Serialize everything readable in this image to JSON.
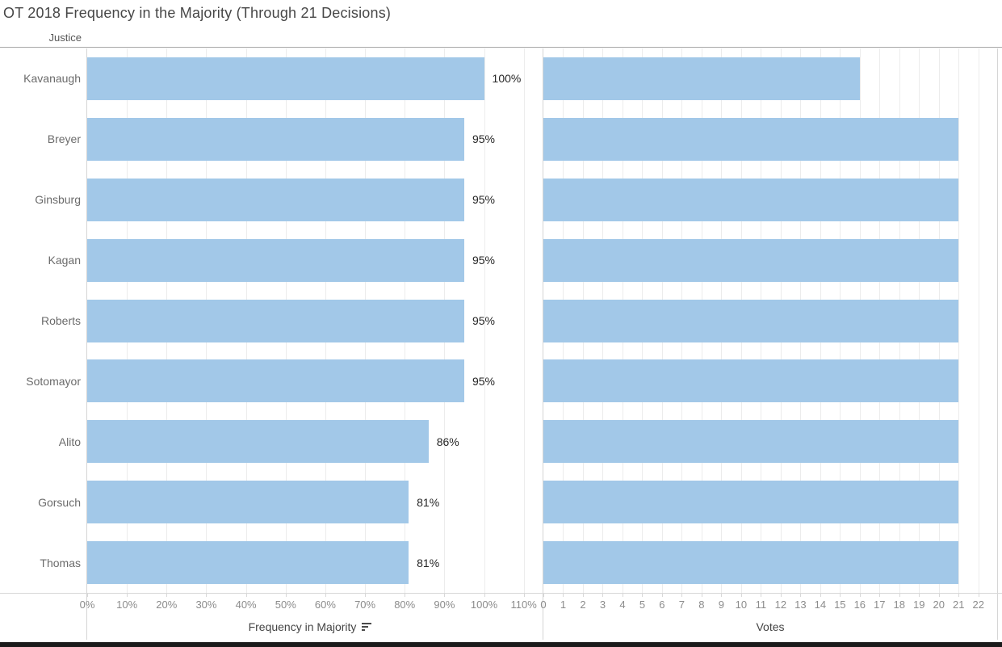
{
  "title": "OT 2018 Frequency in the Majority (Through 21 Decisions)",
  "row_header": "Justice",
  "colors": {
    "bar": "#A2C8E8",
    "gridline": "#ececec",
    "axis_line": "#d8d8d8",
    "pane_border": "#d5d5d5",
    "tick_label": "#8c8c8c",
    "category_label": "#6b6b6b",
    "data_label": "#262626",
    "title_text": "#474747",
    "bottom_bar": "#1b1b1b"
  },
  "chart_data": [
    {
      "type": "bar",
      "orientation": "horizontal",
      "xlabel": "Frequency in Majority",
      "sort": "descending",
      "legend": "none",
      "grid": "vertical",
      "categories": [
        "Kavanaugh",
        "Breyer",
        "Ginsburg",
        "Kagan",
        "Roberts",
        "Sotomayor",
        "Alito",
        "Gorsuch",
        "Thomas"
      ],
      "values": [
        100,
        95,
        95,
        95,
        95,
        95,
        86,
        81,
        81
      ],
      "labels": [
        "100%",
        "95%",
        "95%",
        "95%",
        "95%",
        "95%",
        "86%",
        "81%",
        "81%"
      ],
      "tick_values": [
        0,
        10,
        20,
        30,
        40,
        50,
        60,
        70,
        80,
        90,
        100,
        110
      ],
      "tick_labels": [
        "0%",
        "10%",
        "20%",
        "30%",
        "40%",
        "50%",
        "60%",
        "70%",
        "80%",
        "90%",
        "100%",
        "110%"
      ],
      "xlim": [
        0,
        112.3
      ]
    },
    {
      "type": "bar",
      "orientation": "horizontal",
      "xlabel": "Votes",
      "legend": "none",
      "grid": "vertical",
      "categories": [
        "Kavanaugh",
        "Breyer",
        "Ginsburg",
        "Kagan",
        "Roberts",
        "Sotomayor",
        "Alito",
        "Gorsuch",
        "Thomas"
      ],
      "values": [
        16,
        21,
        21,
        21,
        21,
        21,
        21,
        21,
        21
      ],
      "labels": null,
      "tick_values": [
        0,
        1,
        2,
        3,
        4,
        5,
        6,
        7,
        8,
        9,
        10,
        11,
        12,
        13,
        14,
        15,
        16,
        17,
        18,
        19,
        20,
        21,
        22
      ],
      "tick_labels": [
        "0",
        "1",
        "2",
        "3",
        "4",
        "5",
        "6",
        "7",
        "8",
        "9",
        "10",
        "11",
        "12",
        "13",
        "14",
        "15",
        "16",
        "17",
        "18",
        "19",
        "20",
        "21",
        "22"
      ],
      "xlim": [
        0,
        22.95
      ]
    }
  ]
}
